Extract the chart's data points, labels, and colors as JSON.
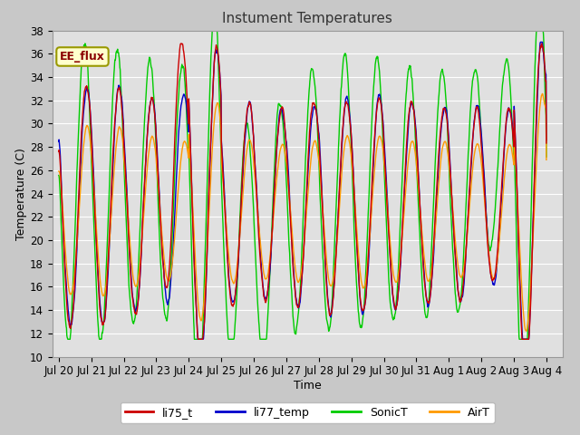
{
  "title": "Instument Temperatures",
  "xlabel": "Time",
  "ylabel": "Temperature (C)",
  "ylim": [
    10,
    38
  ],
  "colors": {
    "li75_t": "#cc0000",
    "li77_temp": "#0000cc",
    "SonicT": "#00cc00",
    "AirT": "#ff9900"
  },
  "annotation_text": "EE_flux",
  "annotation_bg": "#ffffcc",
  "annotation_border": "#999900",
  "xtick_labels": [
    "Jul 20",
    "Jul 21",
    "Jul 22",
    "Jul 23",
    "Jul 24",
    "Jul 25",
    "Jul 26",
    "Jul 27",
    "Jul 28",
    "Jul 29",
    "Jul 30",
    "Jul 31",
    "Aug 1",
    "Aug 2",
    "Aug 3",
    "Aug 4"
  ],
  "fig_facecolor": "#c8c8c8",
  "axes_facecolor": "#e0e0e0",
  "grid_color": "#ffffff"
}
